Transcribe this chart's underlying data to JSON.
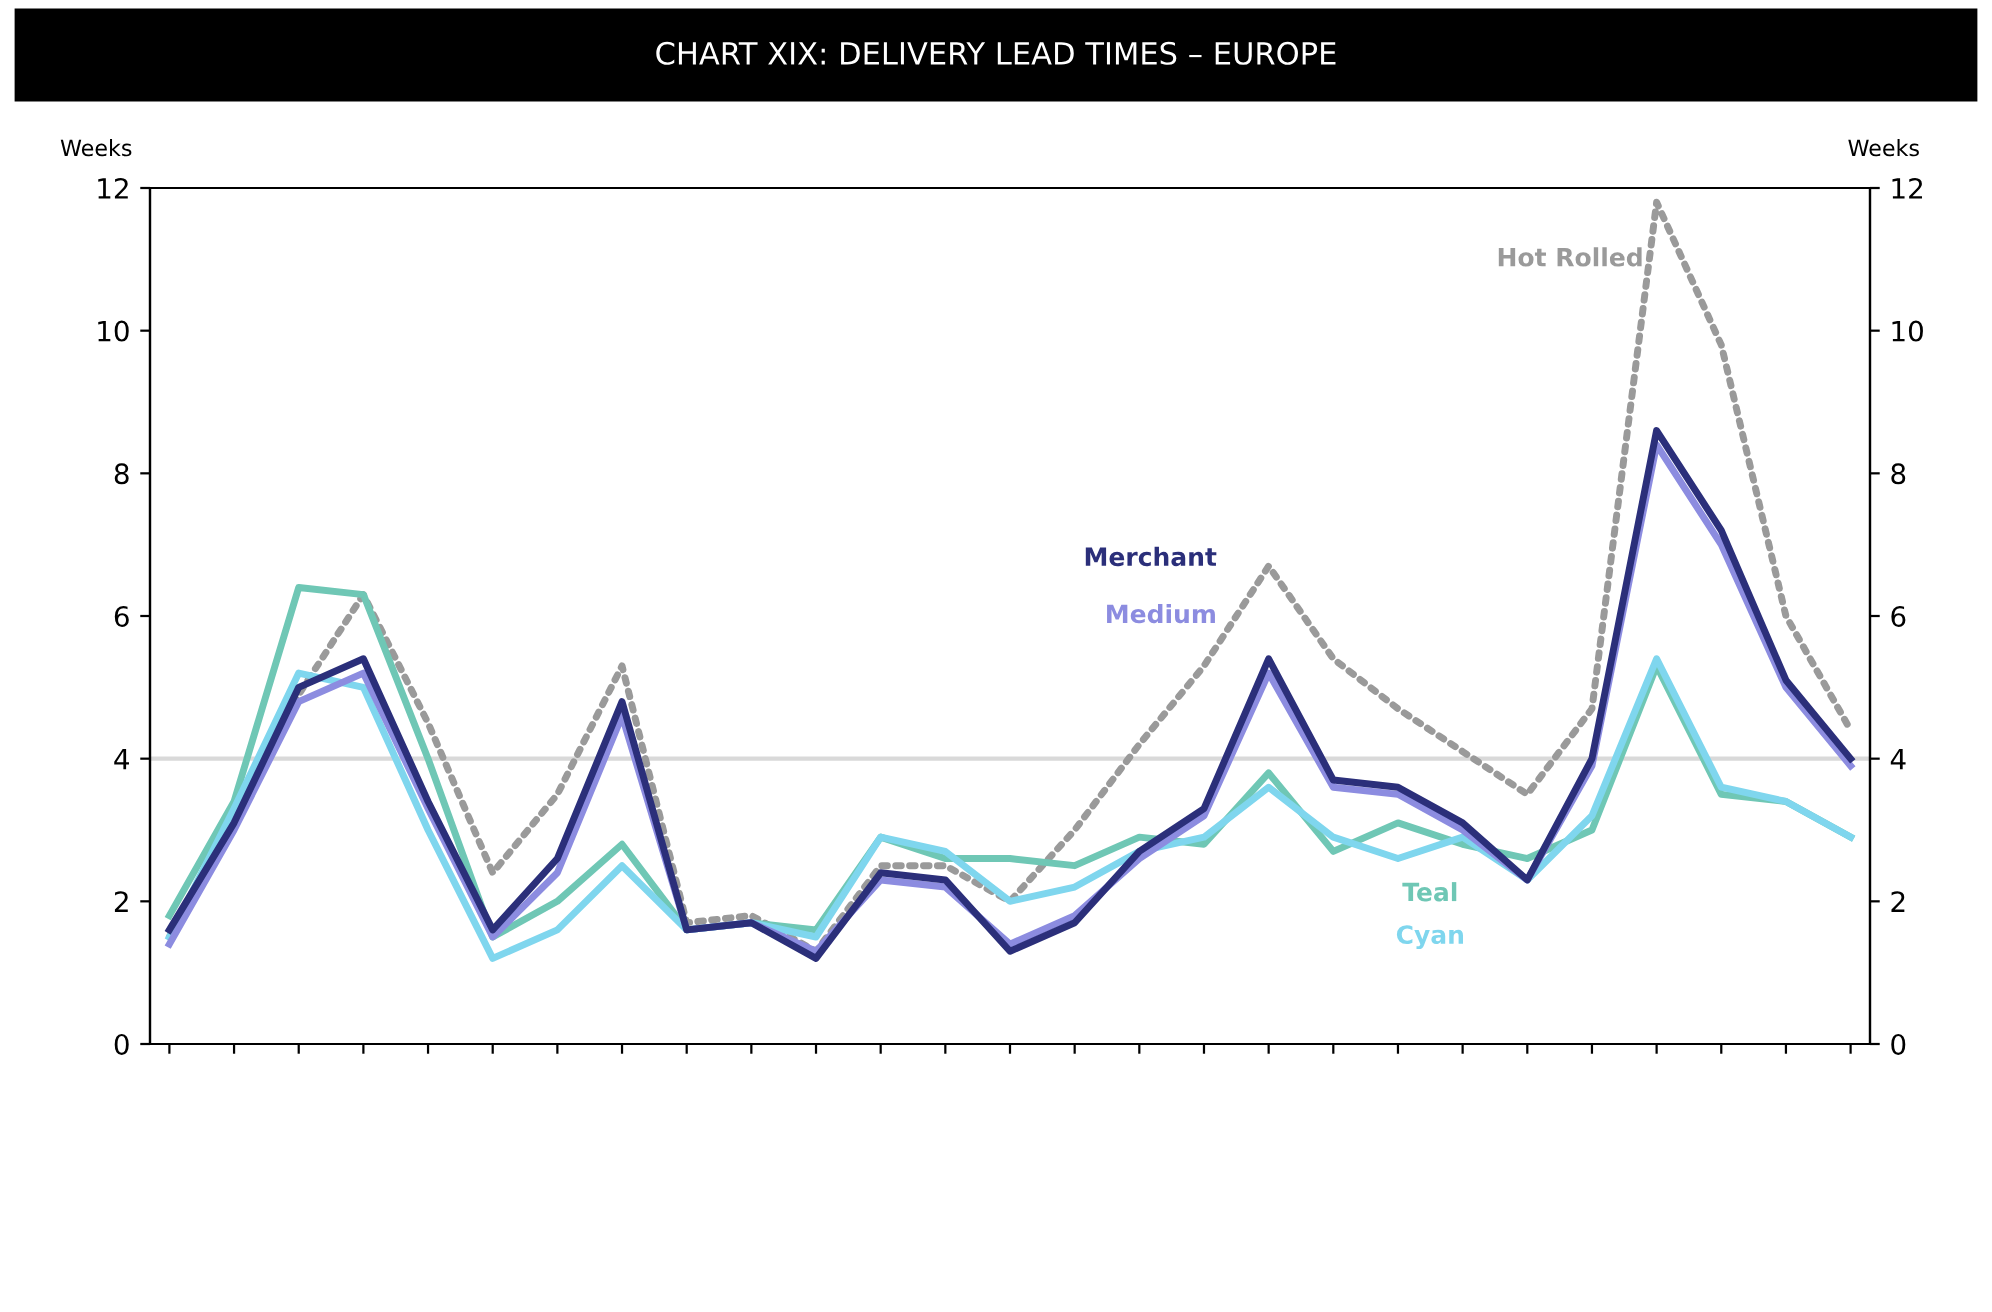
{
  "chart_data": {
    "type": "line",
    "title": "CHART XIX: DELIVERY LEAD TIMES – EUROPE",
    "ylabel": "Weeks",
    "y2label": "Weeks",
    "categories": [
      null,
      null,
      null,
      null,
      null,
      null,
      null,
      null,
      null,
      null,
      null,
      null,
      null,
      null,
      null,
      null,
      null,
      null,
      null,
      null,
      null,
      null,
      null,
      null,
      null,
      null,
      null
    ],
    "ylim": [
      0,
      12
    ],
    "yticks": [
      0,
      2,
      4,
      6,
      8,
      10,
      12
    ],
    "y2lim": [
      0,
      12
    ],
    "y2ticks": [
      0,
      2,
      4,
      6,
      8,
      10,
      12
    ],
    "ref_lines": [
      {
        "axis": "y",
        "value": 4,
        "color": "#d9d9d9"
      }
    ],
    "legend": false,
    "line_style": "solid",
    "marker": "none",
    "series": [
      {
        "name": "Hot Rolled",
        "color": "#9a9a9a",
        "line_style": "dotted",
        "values": [
          1.5,
          3.2,
          4.9,
          6.3,
          4.5,
          2.4,
          3.5,
          5.3,
          1.7,
          1.8,
          1.3,
          2.5,
          2.5,
          2.0,
          3.0,
          4.2,
          5.3,
          6.7,
          5.4,
          4.7,
          4.1,
          3.5,
          4.7,
          11.8,
          9.8,
          6.0,
          4.4
        ]
      },
      {
        "name": "Teal",
        "color": "#6fc7b5",
        "values": [
          1.8,
          3.4,
          6.4,
          6.3,
          4.0,
          1.5,
          2.0,
          2.8,
          1.6,
          1.7,
          1.6,
          2.9,
          2.6,
          2.6,
          2.5,
          2.9,
          2.8,
          3.8,
          2.7,
          3.1,
          2.8,
          2.6,
          3.0,
          5.3,
          3.5,
          3.4,
          2.9
        ]
      },
      {
        "name": "Cyan",
        "color": "#7fd6ee",
        "values": [
          1.5,
          3.3,
          5.2,
          5.0,
          3.0,
          1.2,
          1.6,
          2.5,
          1.6,
          1.7,
          1.5,
          2.9,
          2.7,
          2.0,
          2.2,
          2.7,
          2.9,
          3.6,
          2.9,
          2.6,
          2.9,
          2.3,
          3.2,
          5.4,
          3.6,
          3.4,
          2.9
        ]
      },
      {
        "name": "Medium",
        "color": "#8c8ce0",
        "values": [
          1.4,
          3.0,
          4.8,
          5.2,
          3.3,
          1.5,
          2.4,
          4.6,
          1.6,
          1.7,
          1.3,
          2.3,
          2.2,
          1.4,
          1.8,
          2.6,
          3.2,
          5.2,
          3.6,
          3.5,
          3.0,
          2.3,
          3.9,
          8.4,
          7.0,
          5.0,
          3.9
        ]
      },
      {
        "name": "Merchant",
        "color": "#2b2f7a",
        "values": [
          1.6,
          3.1,
          5.0,
          5.4,
          3.4,
          1.6,
          2.6,
          4.8,
          1.6,
          1.7,
          1.2,
          2.4,
          2.3,
          1.3,
          1.7,
          2.7,
          3.3,
          5.4,
          3.7,
          3.6,
          3.1,
          2.3,
          4.0,
          8.6,
          7.2,
          5.1,
          4.0
        ]
      }
    ]
  }
}
